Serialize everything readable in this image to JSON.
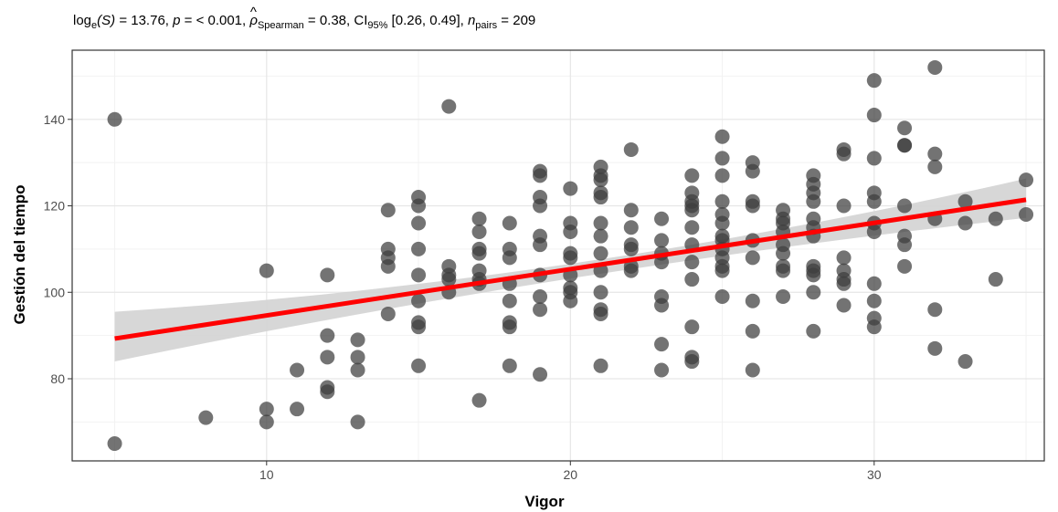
{
  "chart_data": {
    "type": "scatter",
    "subtitle_parts": {
      "stat_label": "log",
      "stat_sub": "e",
      "stat_arg": "(S)",
      "stat_value": " = 13.76, ",
      "p_label": "p",
      "p_value": " = < 0.001, ",
      "rho_label": "ρ",
      "rho_hat": "^",
      "rho_sub": "Spearman",
      "rho_value": " = 0.38, CI",
      "ci_sub": "95%",
      "ci_value": " [0.26, 0.49], ",
      "n_label": "n",
      "n_sub": "pairs",
      "n_value": " = 209"
    },
    "xlabel": "Vigor",
    "ylabel": "Gestión del tiempo",
    "xlim": [
      3.6,
      35.6
    ],
    "ylim": [
      61,
      156
    ],
    "x_ticks": [
      10,
      20,
      30
    ],
    "y_ticks": [
      80,
      100,
      120,
      140
    ],
    "grid": true,
    "point_color": "#3d3d3d",
    "fit_color": "#ff0000",
    "band_color": "#d3d3d3",
    "fit_line": {
      "x": [
        5,
        35
      ],
      "y": [
        89.3,
        121.4
      ]
    },
    "confidence_band": {
      "x": [
        5,
        20,
        35
      ],
      "lower": [
        84.0,
        103.2,
        117.2
      ],
      "upper": [
        95.5,
        106.6,
        126.3
      ]
    },
    "points": [
      {
        "x": 5,
        "y": 140
      },
      {
        "x": 5,
        "y": 65
      },
      {
        "x": 8,
        "y": 71
      },
      {
        "x": 10,
        "y": 105
      },
      {
        "x": 10,
        "y": 73
      },
      {
        "x": 10,
        "y": 70
      },
      {
        "x": 11,
        "y": 82
      },
      {
        "x": 11,
        "y": 73
      },
      {
        "x": 12,
        "y": 104
      },
      {
        "x": 12,
        "y": 90
      },
      {
        "x": 12,
        "y": 85
      },
      {
        "x": 12,
        "y": 78
      },
      {
        "x": 12,
        "y": 77
      },
      {
        "x": 13,
        "y": 89
      },
      {
        "x": 13,
        "y": 85
      },
      {
        "x": 13,
        "y": 82
      },
      {
        "x": 13,
        "y": 70
      },
      {
        "x": 14,
        "y": 119
      },
      {
        "x": 14,
        "y": 110
      },
      {
        "x": 14,
        "y": 108
      },
      {
        "x": 14,
        "y": 106
      },
      {
        "x": 14,
        "y": 95
      },
      {
        "x": 15,
        "y": 122
      },
      {
        "x": 15,
        "y": 120
      },
      {
        "x": 15,
        "y": 116
      },
      {
        "x": 15,
        "y": 110
      },
      {
        "x": 15,
        "y": 104
      },
      {
        "x": 15,
        "y": 98
      },
      {
        "x": 15,
        "y": 93
      },
      {
        "x": 15,
        "y": 92
      },
      {
        "x": 15,
        "y": 83
      },
      {
        "x": 16,
        "y": 143
      },
      {
        "x": 16,
        "y": 106
      },
      {
        "x": 16,
        "y": 104
      },
      {
        "x": 16,
        "y": 103
      },
      {
        "x": 16,
        "y": 100
      },
      {
        "x": 17,
        "y": 117
      },
      {
        "x": 17,
        "y": 114
      },
      {
        "x": 17,
        "y": 110
      },
      {
        "x": 17,
        "y": 109
      },
      {
        "x": 17,
        "y": 105
      },
      {
        "x": 17,
        "y": 103
      },
      {
        "x": 17,
        "y": 102
      },
      {
        "x": 17,
        "y": 75
      },
      {
        "x": 18,
        "y": 116
      },
      {
        "x": 18,
        "y": 110
      },
      {
        "x": 18,
        "y": 108
      },
      {
        "x": 18,
        "y": 102
      },
      {
        "x": 18,
        "y": 98
      },
      {
        "x": 18,
        "y": 93
      },
      {
        "x": 18,
        "y": 92
      },
      {
        "x": 18,
        "y": 83
      },
      {
        "x": 19,
        "y": 128
      },
      {
        "x": 19,
        "y": 127
      },
      {
        "x": 19,
        "y": 122
      },
      {
        "x": 19,
        "y": 120
      },
      {
        "x": 19,
        "y": 113
      },
      {
        "x": 19,
        "y": 111
      },
      {
        "x": 19,
        "y": 104
      },
      {
        "x": 19,
        "y": 99
      },
      {
        "x": 19,
        "y": 96
      },
      {
        "x": 19,
        "y": 81
      },
      {
        "x": 20,
        "y": 124
      },
      {
        "x": 20,
        "y": 116
      },
      {
        "x": 20,
        "y": 114
      },
      {
        "x": 20,
        "y": 109
      },
      {
        "x": 20,
        "y": 108
      },
      {
        "x": 20,
        "y": 104
      },
      {
        "x": 20,
        "y": 101
      },
      {
        "x": 20,
        "y": 100
      },
      {
        "x": 20,
        "y": 98
      },
      {
        "x": 21,
        "y": 129
      },
      {
        "x": 21,
        "y": 127
      },
      {
        "x": 21,
        "y": 126
      },
      {
        "x": 21,
        "y": 123
      },
      {
        "x": 21,
        "y": 122
      },
      {
        "x": 21,
        "y": 116
      },
      {
        "x": 21,
        "y": 113
      },
      {
        "x": 21,
        "y": 109
      },
      {
        "x": 21,
        "y": 105
      },
      {
        "x": 21,
        "y": 100
      },
      {
        "x": 21,
        "y": 96
      },
      {
        "x": 21,
        "y": 95
      },
      {
        "x": 21,
        "y": 83
      },
      {
        "x": 22,
        "y": 133
      },
      {
        "x": 22,
        "y": 119
      },
      {
        "x": 22,
        "y": 115
      },
      {
        "x": 22,
        "y": 111
      },
      {
        "x": 22,
        "y": 110
      },
      {
        "x": 22,
        "y": 106
      },
      {
        "x": 22,
        "y": 105
      },
      {
        "x": 23,
        "y": 117
      },
      {
        "x": 23,
        "y": 112
      },
      {
        "x": 23,
        "y": 109
      },
      {
        "x": 23,
        "y": 107
      },
      {
        "x": 23,
        "y": 99
      },
      {
        "x": 23,
        "y": 97
      },
      {
        "x": 23,
        "y": 88
      },
      {
        "x": 23,
        "y": 82
      },
      {
        "x": 24,
        "y": 127
      },
      {
        "x": 24,
        "y": 123
      },
      {
        "x": 24,
        "y": 121
      },
      {
        "x": 24,
        "y": 120
      },
      {
        "x": 24,
        "y": 119
      },
      {
        "x": 24,
        "y": 115
      },
      {
        "x": 24,
        "y": 111
      },
      {
        "x": 24,
        "y": 107
      },
      {
        "x": 24,
        "y": 103
      },
      {
        "x": 24,
        "y": 92
      },
      {
        "x": 24,
        "y": 85
      },
      {
        "x": 24,
        "y": 84
      },
      {
        "x": 25,
        "y": 136
      },
      {
        "x": 25,
        "y": 131
      },
      {
        "x": 25,
        "y": 127
      },
      {
        "x": 25,
        "y": 121
      },
      {
        "x": 25,
        "y": 118
      },
      {
        "x": 25,
        "y": 116
      },
      {
        "x": 25,
        "y": 113
      },
      {
        "x": 25,
        "y": 112
      },
      {
        "x": 25,
        "y": 110
      },
      {
        "x": 25,
        "y": 108
      },
      {
        "x": 25,
        "y": 106
      },
      {
        "x": 25,
        "y": 105
      },
      {
        "x": 25,
        "y": 99
      },
      {
        "x": 26,
        "y": 130
      },
      {
        "x": 26,
        "y": 128
      },
      {
        "x": 26,
        "y": 121
      },
      {
        "x": 26,
        "y": 120
      },
      {
        "x": 26,
        "y": 112
      },
      {
        "x": 26,
        "y": 108
      },
      {
        "x": 26,
        "y": 98
      },
      {
        "x": 26,
        "y": 91
      },
      {
        "x": 26,
        "y": 82
      },
      {
        "x": 27,
        "y": 119
      },
      {
        "x": 27,
        "y": 117
      },
      {
        "x": 27,
        "y": 116
      },
      {
        "x": 27,
        "y": 114
      },
      {
        "x": 27,
        "y": 111
      },
      {
        "x": 27,
        "y": 109
      },
      {
        "x": 27,
        "y": 106
      },
      {
        "x": 27,
        "y": 105
      },
      {
        "x": 27,
        "y": 99
      },
      {
        "x": 28,
        "y": 127
      },
      {
        "x": 28,
        "y": 125
      },
      {
        "x": 28,
        "y": 123
      },
      {
        "x": 28,
        "y": 121
      },
      {
        "x": 28,
        "y": 117
      },
      {
        "x": 28,
        "y": 115
      },
      {
        "x": 28,
        "y": 113
      },
      {
        "x": 28,
        "y": 106
      },
      {
        "x": 28,
        "y": 105
      },
      {
        "x": 28,
        "y": 104
      },
      {
        "x": 28,
        "y": 100
      },
      {
        "x": 28,
        "y": 91
      },
      {
        "x": 29,
        "y": 133
      },
      {
        "x": 29,
        "y": 132
      },
      {
        "x": 29,
        "y": 120
      },
      {
        "x": 29,
        "y": 108
      },
      {
        "x": 29,
        "y": 105
      },
      {
        "x": 29,
        "y": 103
      },
      {
        "x": 29,
        "y": 102
      },
      {
        "x": 29,
        "y": 97
      },
      {
        "x": 30,
        "y": 149
      },
      {
        "x": 30,
        "y": 141
      },
      {
        "x": 30,
        "y": 131
      },
      {
        "x": 30,
        "y": 123
      },
      {
        "x": 30,
        "y": 121
      },
      {
        "x": 30,
        "y": 116
      },
      {
        "x": 30,
        "y": 114
      },
      {
        "x": 30,
        "y": 102
      },
      {
        "x": 30,
        "y": 98
      },
      {
        "x": 30,
        "y": 94
      },
      {
        "x": 30,
        "y": 92
      },
      {
        "x": 31,
        "y": 138
      },
      {
        "x": 31,
        "y": 134
      },
      {
        "x": 31,
        "y": 134
      },
      {
        "x": 31,
        "y": 120
      },
      {
        "x": 31,
        "y": 113
      },
      {
        "x": 31,
        "y": 111
      },
      {
        "x": 31,
        "y": 106
      },
      {
        "x": 32,
        "y": 152
      },
      {
        "x": 32,
        "y": 132
      },
      {
        "x": 32,
        "y": 129
      },
      {
        "x": 32,
        "y": 117
      },
      {
        "x": 32,
        "y": 96
      },
      {
        "x": 32,
        "y": 87
      },
      {
        "x": 33,
        "y": 121
      },
      {
        "x": 33,
        "y": 116
      },
      {
        "x": 33,
        "y": 84
      },
      {
        "x": 34,
        "y": 117
      },
      {
        "x": 34,
        "y": 103
      },
      {
        "x": 35,
        "y": 126
      },
      {
        "x": 35,
        "y": 118
      }
    ]
  }
}
